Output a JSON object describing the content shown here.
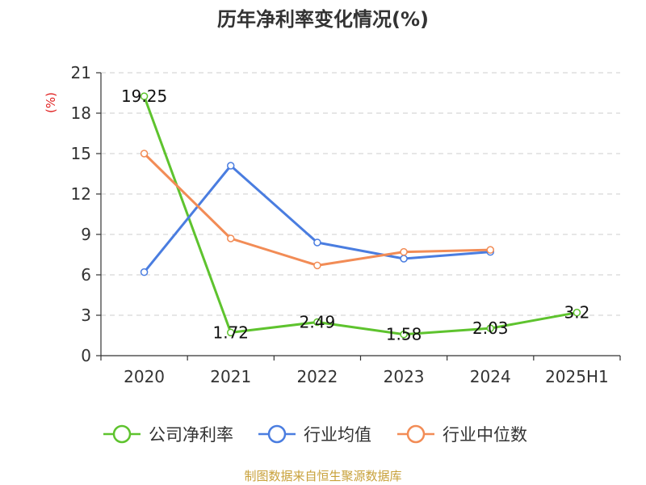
{
  "chart_data": {
    "type": "line",
    "title": "历年净利率变化情况(%)",
    "unit": "(%)",
    "categories": [
      "2020",
      "2021",
      "2022",
      "2023",
      "2024",
      "2025H1"
    ],
    "ylim": [
      0,
      21
    ],
    "yticks": [
      0,
      3,
      6,
      9,
      12,
      15,
      18,
      21
    ],
    "grid": true,
    "legend_position": "bottom",
    "series": [
      {
        "name": "公司净利率",
        "color": "#5ec32e",
        "values": [
          19.25,
          1.72,
          2.49,
          1.58,
          2.03,
          3.2
        ],
        "labels": [
          "19.25",
          "1.72",
          "2.49",
          "1.58",
          "2.03",
          "3.2"
        ]
      },
      {
        "name": "行业均值",
        "color": "#4a7de0",
        "values": [
          6.2,
          14.1,
          8.4,
          7.2,
          7.7,
          null
        ]
      },
      {
        "name": "行业中位数",
        "color": "#f28c56",
        "values": [
          15.0,
          8.7,
          6.7,
          7.7,
          7.85,
          null
        ]
      }
    ]
  },
  "source": "制图数据来自恒生聚源数据库"
}
